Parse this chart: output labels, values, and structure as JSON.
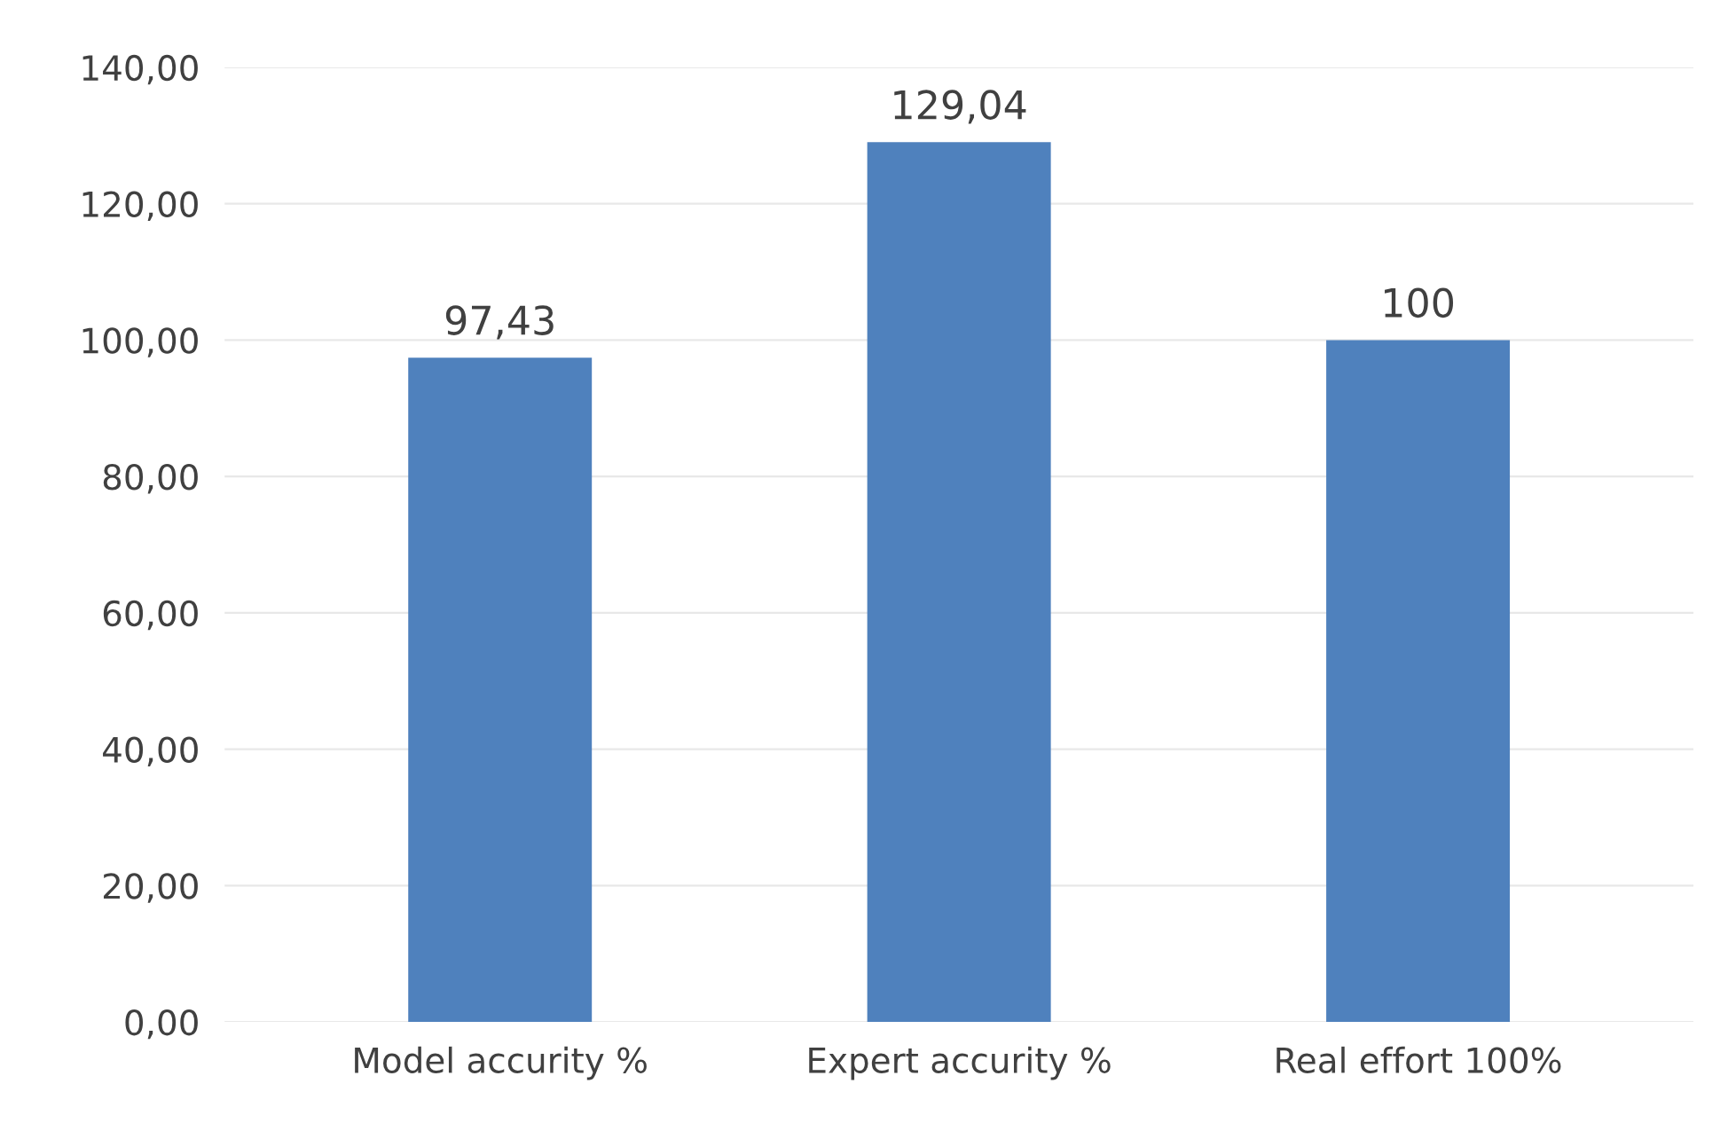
{
  "chart_data": {
    "type": "bar",
    "categories": [
      "Model accurity %",
      "Expert accurity %",
      "Real effort 100%"
    ],
    "values": [
      97.43,
      129.04,
      100
    ],
    "value_labels": [
      "97,43",
      "129,04",
      "100"
    ],
    "color": "#4f81bd",
    "ylim": [
      0,
      140
    ],
    "yticks": [
      {
        "value": 0,
        "label": "0,00"
      },
      {
        "value": 20,
        "label": "20,00"
      },
      {
        "value": 40,
        "label": "40,00"
      },
      {
        "value": 60,
        "label": "60,00"
      },
      {
        "value": 80,
        "label": "80,00"
      },
      {
        "value": 100,
        "label": "100,00"
      },
      {
        "value": 120,
        "label": "120,00"
      },
      {
        "value": 140,
        "label": "140,00"
      }
    ],
    "grid": "y"
  }
}
